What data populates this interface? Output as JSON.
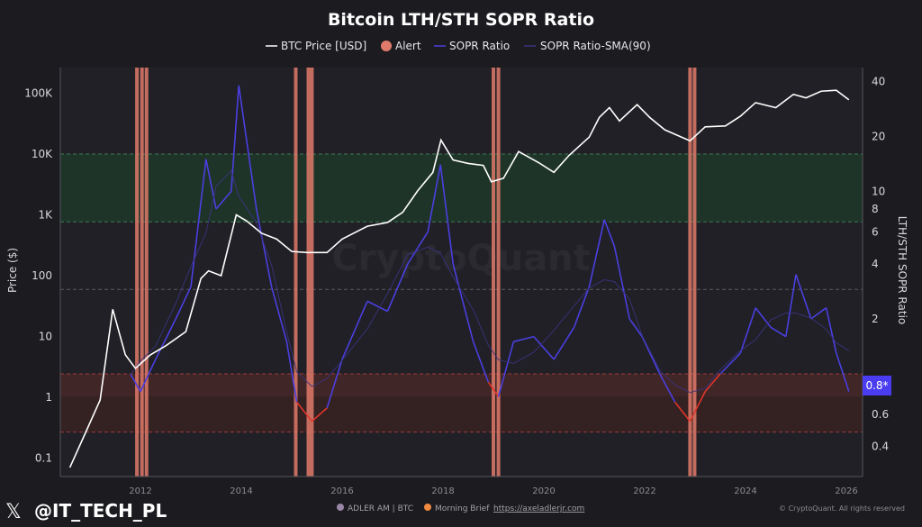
{
  "chart_data": {
    "type": "line",
    "title": "Bitcoin LTH/STH SOPR Ratio",
    "legend": {
      "placement": "top",
      "entries": [
        "BTC Price [USD]",
        "Alert",
        "SOPR Ratio",
        "SOPR Ratio-SMA(90)"
      ]
    },
    "ylabel_left": "Price ($)",
    "ylabel_right": "LTH/STH SOPR Ratio",
    "x_range": [
      2010.5,
      2026.3
    ],
    "x_ticks": [
      "2012",
      "2014",
      "2016",
      "2018",
      "2020",
      "2022",
      "2024",
      "2026"
    ],
    "y_left_scale": "log",
    "y_left_ticks": [
      {
        "v": 100000,
        "label": "100K"
      },
      {
        "v": 10000,
        "label": "10K"
      },
      {
        "v": 1000,
        "label": "1K"
      },
      {
        "v": 100,
        "label": "100"
      },
      {
        "v": 10,
        "label": "10"
      },
      {
        "v": 1,
        "label": "1"
      },
      {
        "v": 0.1,
        "label": "0.1"
      }
    ],
    "y_right_scale": "log",
    "y_right_ticks": [
      {
        "v": 40,
        "label": "40"
      },
      {
        "v": 20,
        "label": "20"
      },
      {
        "v": 10,
        "label": "10"
      },
      {
        "v": 8,
        "label": "8"
      },
      {
        "v": 6,
        "label": "6"
      },
      {
        "v": 4,
        "label": "4"
      },
      {
        "v": 2,
        "label": "2"
      },
      {
        "v": 0.6,
        "label": "0.6"
      },
      {
        "v": 0.4,
        "label": "0.4"
      }
    ],
    "zones": [
      {
        "name": "high",
        "from": 6.8,
        "to": 16,
        "color": "#1f3a2a"
      },
      {
        "name": "low",
        "from": 0.48,
        "to": 1.0,
        "color": "#3a2222"
      }
    ],
    "reference_lines": [
      16,
      6.8,
      2.9,
      1.0,
      0.48
    ],
    "current_value_label": "0.8*",
    "colors": {
      "price": "#ffffff",
      "alert": "#e07a6a",
      "sopr": "#4b3fe0",
      "sopr_below_1": "#e0352b",
      "sma": "#6a5fd0",
      "badge": "#4a3cf0"
    },
    "series": [
      {
        "name": "BTC Price [USD]",
        "axis": "left",
        "x": [
          2010.6,
          2010.9,
          2011.2,
          2011.45,
          2011.7,
          2011.9,
          2012.2,
          2012.5,
          2012.9,
          2013.2,
          2013.35,
          2013.6,
          2013.9,
          2014.1,
          2014.4,
          2014.7,
          2015.0,
          2015.3,
          2015.7,
          2016.0,
          2016.5,
          2016.9,
          2017.2,
          2017.5,
          2017.8,
          2017.96,
          2018.2,
          2018.5,
          2018.8,
          2018.96,
          2019.2,
          2019.5,
          2019.9,
          2020.2,
          2020.5,
          2020.9,
          2021.1,
          2021.3,
          2021.5,
          2021.85,
          2022.1,
          2022.4,
          2022.9,
          2023.2,
          2023.6,
          2023.9,
          2024.2,
          2024.6,
          2024.95,
          2025.2,
          2025.5,
          2025.8,
          2026.05
        ],
        "values": [
          0.07,
          0.25,
          0.9,
          28,
          5,
          3,
          5,
          7,
          12,
          90,
          120,
          100,
          1000,
          800,
          500,
          400,
          250,
          240,
          240,
          400,
          650,
          750,
          1100,
          2500,
          5000,
          17000,
          8000,
          7000,
          6500,
          3500,
          4000,
          11000,
          7200,
          5000,
          9500,
          19000,
          40000,
          58000,
          35000,
          65000,
          40000,
          25000,
          16500,
          28000,
          29000,
          42000,
          70000,
          58000,
          96000,
          84000,
          108000,
          112000,
          78000
        ]
      },
      {
        "name": "SOPR Ratio",
        "axis": "right",
        "x": [
          2011.8,
          2012.0,
          2012.3,
          2012.7,
          2013.0,
          2013.3,
          2013.5,
          2013.8,
          2013.95,
          2014.3,
          2014.6,
          2014.9,
          2015.1,
          2015.4,
          2015.7,
          2016.0,
          2016.5,
          2016.9,
          2017.3,
          2017.7,
          2017.95,
          2018.2,
          2018.6,
          2018.9,
          2019.1,
          2019.4,
          2019.8,
          2020.2,
          2020.6,
          2020.9,
          2021.2,
          2021.4,
          2021.7,
          2021.95,
          2022.3,
          2022.6,
          2022.9,
          2023.2,
          2023.5,
          2023.9,
          2024.2,
          2024.5,
          2024.8,
          2025.0,
          2025.3,
          2025.6,
          2025.8,
          2026.05
        ],
        "values": [
          1.0,
          0.8,
          1.2,
          2,
          3,
          15,
          8,
          10,
          38,
          8,
          3,
          1.5,
          0.7,
          0.55,
          0.65,
          1.2,
          2.5,
          2.2,
          4,
          6,
          14,
          4,
          1.5,
          0.9,
          0.75,
          1.5,
          1.6,
          1.2,
          1.8,
          3,
          7,
          5,
          2,
          1.6,
          1.0,
          0.7,
          0.55,
          0.8,
          1.0,
          1.3,
          2.3,
          1.8,
          1.6,
          3.5,
          2.0,
          2.3,
          1.3,
          0.8
        ]
      },
      {
        "name": "SOPR Ratio-SMA(90)",
        "axis": "right",
        "derived_from": "SOPR Ratio"
      }
    ],
    "alerts": [
      2011.93,
      2012.03,
      2012.12,
      2015.08,
      2015.33,
      2015.4,
      2019.0,
      2019.1,
      2022.9,
      2022.99
    ]
  },
  "footer": {
    "handle": "@IT_TECH_PL",
    "source1": "ADLER AM | BTC",
    "source2": "Morning Brief",
    "link": "https://axeladlerjr.com",
    "copyright": "© CryptoQuant. All rights reserved",
    "watermark": "CryptoQuant"
  }
}
